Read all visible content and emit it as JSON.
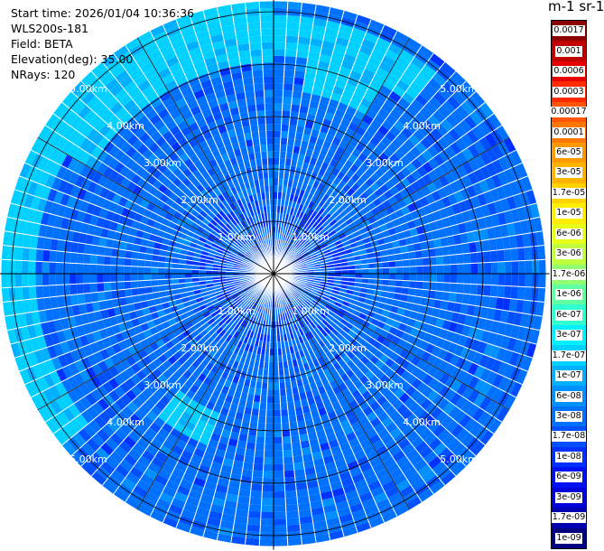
{
  "info": {
    "start_time": "Start time: 2026/01/04 10:36:36",
    "instrument": "WLS200s-181",
    "field": "Field: BETA",
    "elevation": "Elevation(deg): 35.00",
    "nrays": "NRays: 120"
  },
  "colorbar": {
    "title": "m-1 sr-1",
    "labels": [
      "0.0017",
      "0.001",
      "0.0006",
      "0.0003",
      "0.00017",
      "0.0001",
      "6e-05",
      "3e-05",
      "1.7e-05",
      "1e-05",
      "6e-06",
      "3e-06",
      "1.7e-06",
      "1e-06",
      "6e-07",
      "3e-07",
      "1.7e-07",
      "1e-07",
      "6e-08",
      "3e-08",
      "1.7e-08",
      "1e-08",
      "6e-09",
      "3e-09",
      "1.7e-09",
      "1e-09"
    ],
    "colors": [
      "#8b0000",
      "#c00000",
      "#e60000",
      "#ff2a00",
      "#ff5500",
      "#ff7700",
      "#ff9900",
      "#ffb400",
      "#ffd200",
      "#ffee00",
      "#e8ff1a",
      "#c0ff40",
      "#90ff70",
      "#60ffa0",
      "#30ffd0",
      "#00f0ff",
      "#00d0ff",
      "#00b0ff",
      "#0090ff",
      "#0070ff",
      "#0050ff",
      "#0030ff",
      "#0010f0",
      "#0000d8",
      "#0000b0",
      "#000080"
    ]
  },
  "chart_data": {
    "type": "heatmap",
    "projection": "polar (PPI)",
    "field": "BETA",
    "elevation_deg": 35.0,
    "n_rays": 120,
    "range_rings_km": [
      1,
      2,
      3,
      4,
      5
    ],
    "ring_labels": [
      "1.00km",
      "2.00km",
      "3.00km",
      "4.00km",
      "5.00km"
    ],
    "max_range_km": 5.2,
    "color_scale": "log",
    "value_range": [
      1e-09,
      0.0017
    ],
    "typical_value": 3e-08,
    "elevated_values": 1.7e-07,
    "features": [
      {
        "azimuth_deg": [
          300,
          360
        ],
        "range_km": [
          4.0,
          5.2
        ],
        "value": 1.7e-07
      },
      {
        "azimuth_deg": [
          0,
          40
        ],
        "range_km": [
          4.2,
          5.0
        ],
        "value": 1.7e-07
      },
      {
        "azimuth_deg": [
          230,
          300
        ],
        "range_km": [
          4.6,
          5.2
        ],
        "value": 1.7e-07
      },
      {
        "azimuth_deg": [
          10,
          30
        ],
        "range_km": [
          3.5,
          4.2
        ],
        "value": 1.7e-07
      },
      {
        "azimuth_deg": [
          200,
          220
        ],
        "range_km": [
          2.8,
          3.5
        ],
        "value": 1.7e-07
      }
    ]
  }
}
